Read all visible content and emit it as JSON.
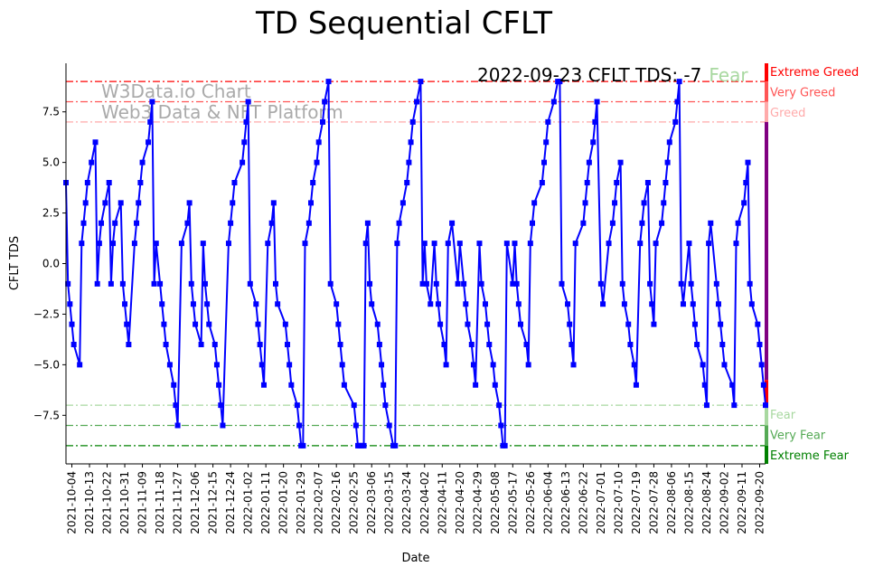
{
  "chart_data": {
    "type": "line",
    "title": "TD Sequential CFLT",
    "xlabel": "Date",
    "ylabel": "CFLT TDS",
    "start_date": "2021-10-01",
    "x_unit": "days since start_date",
    "xlim": [
      0,
      357
    ],
    "ylim": [
      -9.9,
      9.9
    ],
    "grid": false,
    "series": [
      {
        "name": "CFLT TDS",
        "color": "#0000ff",
        "marker": "square",
        "x": [
          0,
          1,
          2,
          3,
          4,
          7,
          8,
          9,
          10,
          11,
          13,
          15,
          16,
          17,
          18,
          20,
          22,
          23,
          24,
          25,
          28,
          29,
          30,
          31,
          32,
          35,
          36,
          37,
          38,
          39,
          42,
          43,
          44,
          45,
          46,
          48,
          49,
          50,
          51,
          53,
          55,
          56,
          57,
          59,
          62,
          63,
          64,
          65,
          66,
          69,
          70,
          71,
          72,
          73,
          76,
          77,
          78,
          79,
          80,
          83,
          84,
          85,
          86,
          90,
          91,
          92,
          93,
          94,
          97,
          98,
          99,
          100,
          101,
          103,
          105,
          106,
          107,
          108,
          112,
          113,
          114,
          115,
          118,
          119,
          120,
          121,
          122,
          124,
          125,
          126,
          128,
          129,
          131,
          132,
          134,
          135,
          138,
          139,
          140,
          141,
          142,
          147,
          148,
          149,
          150,
          151,
          152,
          153,
          154,
          155,
          156,
          159,
          160,
          161,
          162,
          163,
          165,
          167,
          168,
          169,
          170,
          172,
          174,
          175,
          176,
          177,
          179,
          181,
          182,
          183,
          184,
          186,
          188,
          189,
          190,
          191,
          193,
          194,
          195,
          197,
          200,
          201,
          203,
          204,
          205,
          207,
          208,
          209,
          211,
          212,
          214,
          215,
          216,
          218,
          219,
          221,
          222,
          223,
          224,
          225,
          228,
          229,
          230,
          231,
          232,
          235,
          236,
          237,
          238,
          239,
          243,
          244,
          245,
          246,
          249,
          251,
          252,
          253,
          256,
          257,
          258,
          259,
          260,
          264,
          265,
          266,
          267,
          269,
          270,
          271,
          273,
          274,
          277,
          279,
          280,
          281,
          283,
          284,
          285,
          287,
          288,
          290,
          291,
          293,
          294,
          295,
          297,
          298,
          299,
          300,
          301,
          304,
          305,
          306,
          307,
          308,
          311,
          312,
          313,
          314,
          315,
          318,
          319,
          320,
          321,
          322,
          325,
          326,
          327,
          328,
          329,
          332,
          333,
          334,
          335,
          336,
          340,
          341,
          342,
          343,
          346,
          347,
          348,
          349,
          350,
          353,
          354,
          355,
          356,
          357
        ],
        "y": [
          4,
          -1,
          -2,
          -3,
          -4,
          -5,
          1,
          2,
          3,
          4,
          5,
          6,
          -1,
          1,
          2,
          3,
          4,
          -1,
          1,
          2,
          3,
          -1,
          -2,
          -3,
          -4,
          1,
          2,
          3,
          4,
          5,
          6,
          7,
          8,
          -1,
          1,
          -1,
          -2,
          -3,
          -4,
          -5,
          -6,
          -7,
          -8,
          1,
          2,
          3,
          -1,
          -2,
          -3,
          -4,
          1,
          -1,
          -2,
          -3,
          -4,
          -5,
          -6,
          -7,
          -8,
          1,
          2,
          3,
          4,
          5,
          6,
          7,
          8,
          -1,
          -2,
          -3,
          -4,
          -5,
          -6,
          1,
          2,
          3,
          -1,
          -2,
          -3,
          -4,
          -5,
          -6,
          -7,
          -8,
          -9,
          -9,
          1,
          2,
          3,
          4,
          5,
          6,
          7,
          8,
          9,
          -1,
          -2,
          -3,
          -4,
          -5,
          -6,
          -7,
          -8,
          -9,
          -9,
          -9,
          -9,
          1,
          2,
          -1,
          -2,
          -3,
          -4,
          -5,
          -6,
          -7,
          -8,
          -9,
          -9,
          1,
          2,
          3,
          4,
          5,
          6,
          7,
          8,
          9,
          -1,
          1,
          -1,
          -2,
          1,
          -1,
          -2,
          -3,
          -4,
          -5,
          1,
          2,
          -1,
          1,
          -1,
          -2,
          -3,
          -4,
          -5,
          -6,
          1,
          -1,
          -2,
          -3,
          -4,
          -5,
          -6,
          -7,
          -8,
          -9,
          -9,
          1,
          -1,
          1,
          -1,
          -2,
          -3,
          -4,
          -5,
          1,
          2,
          3,
          4,
          5,
          6,
          7,
          8,
          9,
          9,
          -1,
          -2,
          -3,
          -4,
          -5,
          1,
          2,
          3,
          4,
          5,
          6,
          7,
          8,
          -1,
          -2,
          1,
          2,
          3,
          4,
          5,
          -1,
          -2,
          -3,
          -4,
          -5,
          -6,
          1,
          2,
          3,
          4,
          -1,
          -2,
          -3,
          1,
          2,
          3,
          4,
          5,
          6,
          7,
          8,
          9,
          -1,
          -2,
          1,
          -1,
          -2,
          -3,
          -4,
          -5,
          -6,
          -7,
          1,
          2,
          -1,
          -2,
          -3,
          -4,
          -5,
          -6,
          -7,
          1,
          2,
          3,
          4,
          5,
          -1,
          -2,
          -3,
          -4,
          -5,
          -6,
          -7
        ]
      }
    ],
    "x_ticks": {
      "values": [
        3,
        12,
        21,
        30,
        39,
        48,
        57,
        66,
        75,
        84,
        93,
        102,
        111,
        120,
        129,
        138,
        147,
        156,
        165,
        174,
        183,
        192,
        201,
        210,
        219,
        228,
        237,
        246,
        255,
        264,
        273,
        282,
        291,
        300,
        309,
        318,
        327,
        336,
        345,
        354
      ],
      "labels": [
        "2021-10-04",
        "2021-10-13",
        "2021-10-22",
        "2021-10-31",
        "2021-11-09",
        "2021-11-18",
        "2021-11-27",
        "2021-12-06",
        "2021-12-15",
        "2021-12-24",
        "2022-01-02",
        "2022-01-11",
        "2022-01-20",
        "2022-01-29",
        "2022-02-07",
        "2022-02-16",
        "2022-02-25",
        "2022-03-06",
        "2022-03-15",
        "2022-03-24",
        "2022-04-02",
        "2022-04-11",
        "2022-04-20",
        "2022-04-29",
        "2022-05-08",
        "2022-05-17",
        "2022-05-26",
        "2022-06-04",
        "2022-06-13",
        "2022-06-22",
        "2022-07-01",
        "2022-07-10",
        "2022-07-19",
        "2022-07-28",
        "2022-08-06",
        "2022-08-15",
        "2022-08-24",
        "2022-09-02",
        "2022-09-11",
        "2022-09-20"
      ]
    },
    "y_ticks": {
      "values": [
        -7.5,
        -5,
        -2.5,
        0,
        2.5,
        5,
        7.5
      ],
      "labels": [
        "−7.5",
        "−5.0",
        "−2.5",
        "0.0",
        "2.5",
        "5.0",
        "7.5"
      ]
    },
    "levels": [
      {
        "label": "Extreme Greed",
        "value": 9,
        "color": "#ff0000"
      },
      {
        "label": "Very Greed",
        "value": 8,
        "color": "#ff5555"
      },
      {
        "label": "Greed",
        "value": 7,
        "color": "#ffaaaa"
      },
      {
        "label": "Fear",
        "value": -7,
        "color": "#a8d8a0"
      },
      {
        "label": "Very Fear",
        "value": -8,
        "color": "#55aa55"
      },
      {
        "label": "Extreme Fear",
        "value": -9,
        "color": "#008000"
      }
    ],
    "side_bar": [
      {
        "from": 9.9,
        "to": 9,
        "color": "#ff0000"
      },
      {
        "from": 9,
        "to": 8,
        "color": "#ff5555"
      },
      {
        "from": 8,
        "to": 7,
        "color": "#ffaaaa"
      },
      {
        "from": 7,
        "to": -5.75,
        "color": "#800080"
      },
      {
        "from": -5.75,
        "to": -7,
        "color": "#ff0000"
      },
      {
        "from": -7,
        "to": -8,
        "color": "#a8d8a0"
      },
      {
        "from": -8,
        "to": -9,
        "color": "#55aa55"
      },
      {
        "from": -9,
        "to": -9.9,
        "color": "#008000"
      }
    ],
    "annotation": {
      "text": "2022-09-23 CFLT TDS: -7",
      "status": "Fear",
      "status_color": "#a8d8a0"
    },
    "watermark": {
      "line1": "W3Data.io Chart",
      "line2": "Web3 Data & NFT Platform"
    }
  }
}
